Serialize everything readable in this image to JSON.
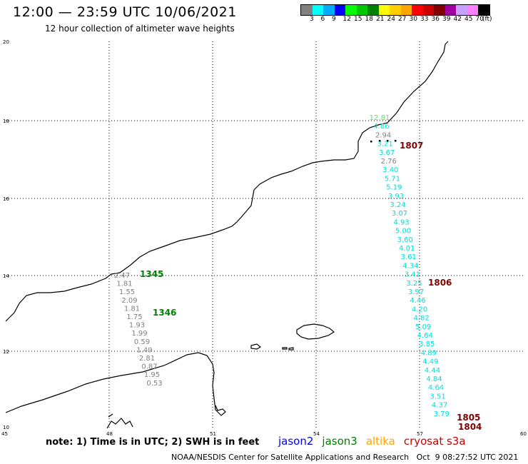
{
  "header": {
    "title": "12:00 — 23:59 UTC 10/06/2021",
    "subtitle": "12 hour collection of altimeter wave heights"
  },
  "legend": {
    "colors": [
      "#808080",
      "#00ffff",
      "#00aaff",
      "#0000ff",
      "#00ff00",
      "#00c800",
      "#008000",
      "#ffff00",
      "#ffd000",
      "#ffa500",
      "#ff0000",
      "#c80000",
      "#800000",
      "#a000a0",
      "#c8a0ff",
      "#ff80ff",
      "#000000"
    ],
    "labels": [
      "3",
      "6",
      "9",
      "12",
      "15",
      "18",
      "21",
      "24",
      "27",
      "30",
      "33",
      "36",
      "39",
      "42",
      "45",
      "70",
      "(ft)"
    ]
  },
  "axes": {
    "lat_labels": [
      "20",
      "18",
      "16",
      "14",
      "12",
      "10"
    ],
    "lon_labels": [
      "45",
      "48",
      "51",
      "54",
      "57",
      "60"
    ]
  },
  "observations": {
    "cryosat_track": [
      "12.81",
      "4.86",
      "2.94",
      "3.21",
      "3.67",
      "2.76",
      "3.40",
      "5.71",
      "5.19",
      "3.93",
      "3.24",
      "3.07",
      "4.93",
      "5.00",
      "3.60",
      "4.01",
      "3.61",
      "4.34",
      "3.41",
      "3.25",
      "3.97",
      "4.46",
      "4.20",
      "4.82",
      "5.09",
      "4.64",
      "3.85",
      "4.89",
      "4.49",
      "4.44",
      "4.84",
      "4.64",
      "3.51",
      "4.37",
      "3.79"
    ],
    "jason3_track": [
      "2.47",
      "1.81",
      "1.55",
      "2.09",
      "1.81",
      "1.75",
      "1.93",
      "1.99",
      "0.59",
      "1.49",
      "2.81",
      "0.87",
      "1.95",
      "0.53"
    ],
    "pass_times": [
      "1807",
      "1806",
      "1805",
      "1804",
      "1345",
      "1346"
    ]
  },
  "footer": {
    "note": "note: 1) Time is in UTC; 2) SWH is in feet",
    "satellites": [
      {
        "name": "jason2",
        "color": "#0000ff"
      },
      {
        "name": "jason3",
        "color": "#008000"
      },
      {
        "name": "altika",
        "color": "#ffa500"
      },
      {
        "name": "cryosat s3a",
        "color": "#c80000"
      }
    ],
    "credit": "NOAA/NESDIS Center for Satellite Applications and Research   Oct  9 08:27:52 UTC 2021"
  }
}
